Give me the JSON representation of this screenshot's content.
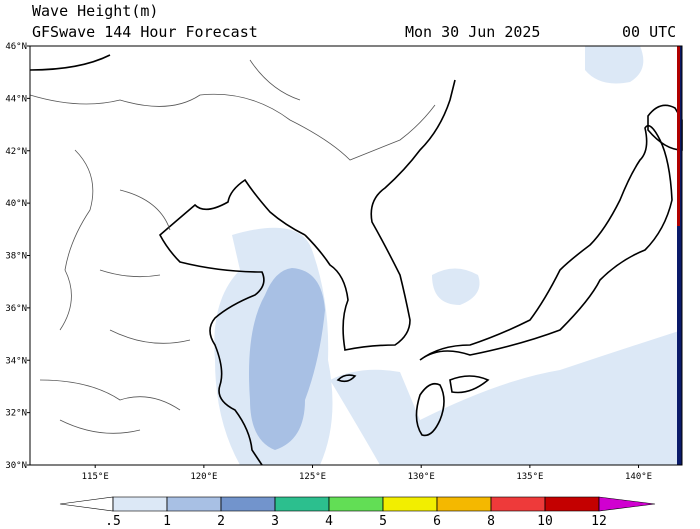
{
  "map": {
    "title": "Wave Height(m)",
    "subtitle": "GFSwave 144 Hour Forecast",
    "date": "Mon 30 Jun 2025",
    "time": "00 UTC",
    "xlim": [
      112,
      142
    ],
    "ylim": [
      30,
      46
    ],
    "lat_ticks": [
      {
        "value": 30,
        "label": "30°N"
      },
      {
        "value": 32,
        "label": "32°N"
      },
      {
        "value": 34,
        "label": "34°N"
      },
      {
        "value": 36,
        "label": "36°N"
      },
      {
        "value": 38,
        "label": "38°N"
      },
      {
        "value": 40,
        "label": "40°N"
      },
      {
        "value": 42,
        "label": "42°N"
      },
      {
        "value": 44,
        "label": "44°N"
      },
      {
        "value": 46,
        "label": "46°N"
      }
    ],
    "lon_ticks": [
      {
        "value": 115,
        "label": "115°E"
      },
      {
        "value": 120,
        "label": "120°E"
      },
      {
        "value": 125,
        "label": "125°E"
      },
      {
        "value": 130,
        "label": "130°E"
      },
      {
        "value": 135,
        "label": "135°E"
      },
      {
        "value": 140,
        "label": "140°E"
      }
    ],
    "colorbar": {
      "ticks": [
        {
          "value": 0.5,
          "label": ".5"
        },
        1,
        2,
        3,
        4,
        5,
        6,
        8,
        10,
        12
      ],
      "colors": [
        "#ffffff",
        "#dce8f6",
        "#a8c0e4",
        "#7294cc",
        "#2cbf8e",
        "#62de55",
        "#f2ee00",
        "#f4b800",
        "#ee3a3a",
        "#c40000",
        "#d000d0"
      ]
    }
  }
}
